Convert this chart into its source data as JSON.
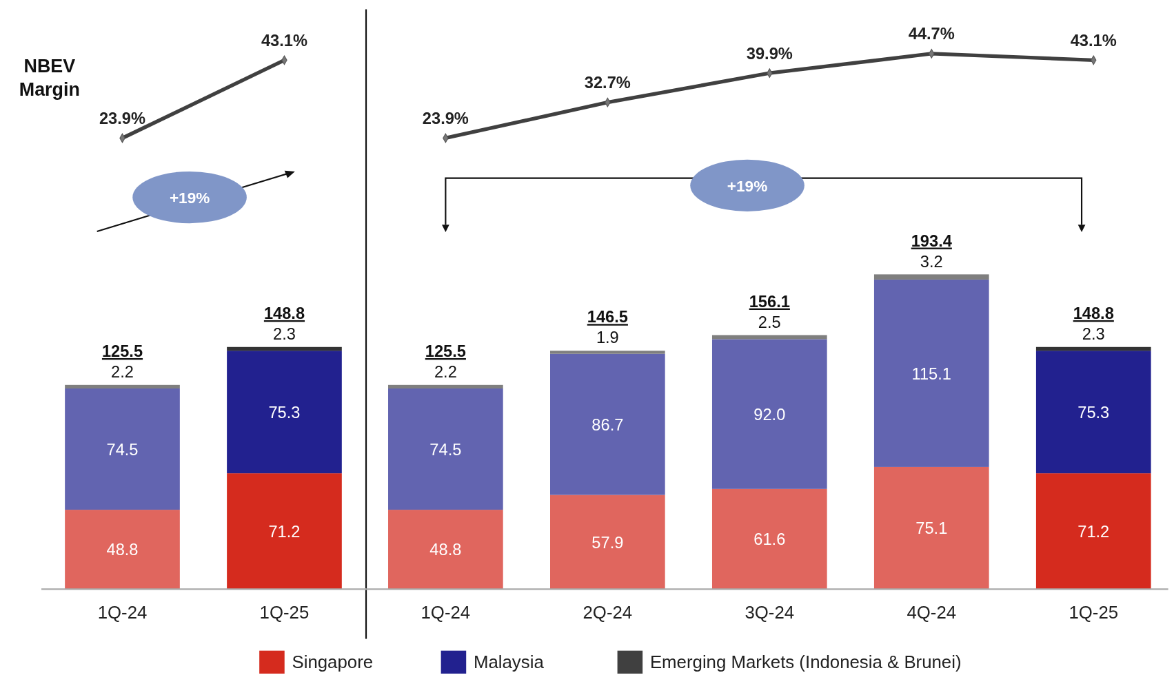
{
  "chart_data": [
    {
      "type": "line",
      "categories": [
        null,
        null
      ],
      "marker": "diamond",
      "annotations": [
        "NBEV Margin"
      ],
      "series": [
        {
          "color": "#404040",
          "values": [
            23.9,
            43.1
          ],
          "value_labels": [
            "23.9%",
            "43.1%"
          ]
        }
      ]
    },
    {
      "type": "bar",
      "stacked": true,
      "categories": [
        "1Q-24",
        "1Q-25"
      ],
      "annotations": [
        "+19%"
      ],
      "totals": [
        "125.5",
        "148.8"
      ],
      "series": [
        {
          "values": [
            48.8,
            71.2
          ],
          "colors": [
            "#e0665e",
            "#d52b1e"
          ],
          "value_labels": [
            "48.8",
            "71.2"
          ]
        },
        {
          "values": [
            74.5,
            75.3
          ],
          "colors": [
            "#6264b0",
            "#22218f"
          ],
          "value_labels": [
            "74.5",
            "75.3"
          ]
        },
        {
          "values": [
            2.2,
            2.3
          ],
          "colors": [
            "#7f7f7f",
            "#333333"
          ],
          "value_labels": [
            "2.2",
            "2.3"
          ]
        }
      ]
    },
    {
      "type": "line",
      "categories": [
        null,
        null,
        null,
        null,
        null
      ],
      "marker": "diamond",
      "series": [
        {
          "color": "#404040",
          "values": [
            23.9,
            32.7,
            39.9,
            44.7,
            43.1
          ],
          "value_labels": [
            "23.9%",
            "32.7%",
            "39.9%",
            "44.7%",
            "43.1%"
          ]
        }
      ]
    },
    {
      "type": "bar",
      "stacked": true,
      "categories": [
        "1Q-24",
        "2Q-24",
        "3Q-24",
        "4Q-24",
        "1Q-25"
      ],
      "legend": "bottom",
      "annotations": [
        "+19%"
      ],
      "totals": [
        "125.5",
        "146.5",
        "156.1",
        "193.4",
        "148.8"
      ],
      "series": [
        {
          "name": "Singapore",
          "color": "#d52b1e",
          "values": [
            48.8,
            57.9,
            61.6,
            75.1,
            71.2
          ],
          "colors": [
            "#e0665e",
            "#e0665e",
            "#e0665e",
            "#e0665e",
            "#d52b1e"
          ],
          "value_labels": [
            "48.8",
            "57.9",
            "61.6",
            "75.1",
            "71.2"
          ]
        },
        {
          "name": "Malaysia",
          "color": "#22218f",
          "values": [
            74.5,
            86.7,
            92.0,
            115.1,
            75.3
          ],
          "colors": [
            "#6264b0",
            "#6264b0",
            "#6264b0",
            "#6264b0",
            "#22218f"
          ],
          "value_labels": [
            "74.5",
            "86.7",
            "92.0",
            "115.1",
            "75.3"
          ]
        },
        {
          "name": "Emerging Markets (Indonesia & Brunei)",
          "color": "#404040",
          "values": [
            2.2,
            1.9,
            2.5,
            3.2,
            2.3
          ],
          "colors": [
            "#7f7f7f",
            "#7f7f7f",
            "#7f7f7f",
            "#7f7f7f",
            "#333333"
          ],
          "value_labels": [
            "2.2",
            "1.9",
            "2.5",
            "3.2",
            "2.3"
          ]
        }
      ]
    }
  ]
}
